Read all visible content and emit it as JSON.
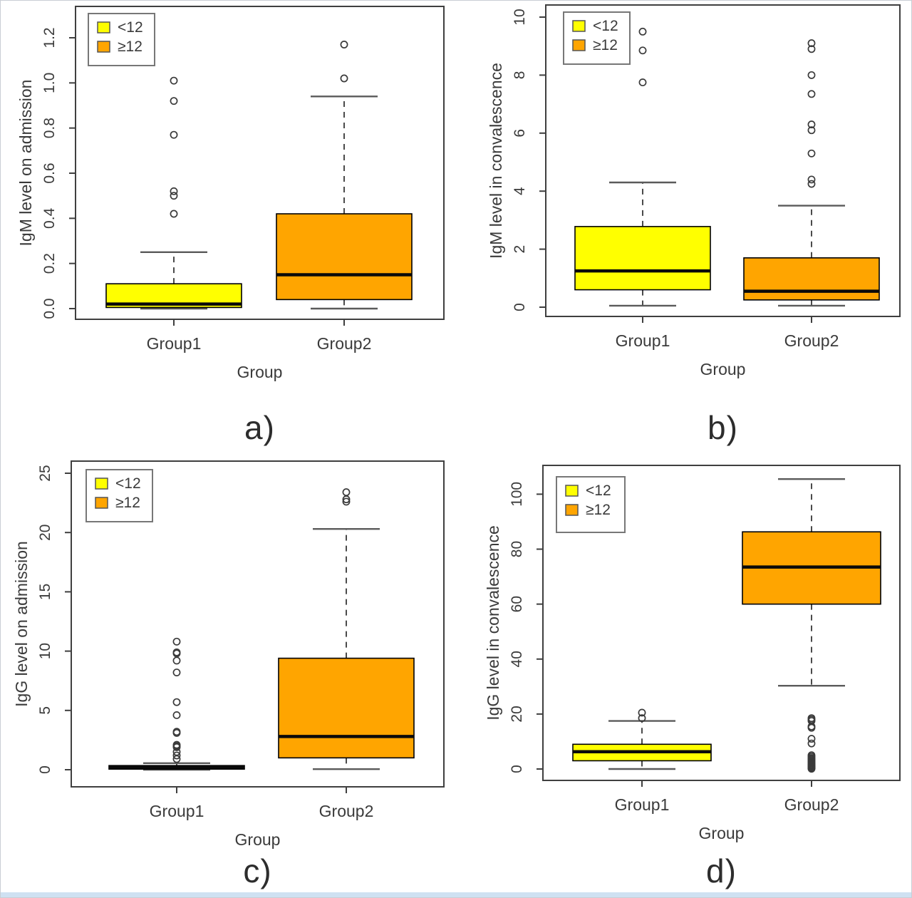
{
  "figure": {
    "colors": {
      "group1_fill": "#FFFF00",
      "group2_fill": "#FFA500",
      "box_stroke": "#000000",
      "median_stroke": "#0a0a0a",
      "whisker_line": "#2b2b2b",
      "whisker_cap": "#5a5a5a",
      "outlier_stroke": "#3a3a3a",
      "plot_border": "#3f3f3f",
      "axis_text": "#3a3a3a",
      "legend_border": "#777777",
      "bottom_strip": "#cfe1f2"
    },
    "legend": {
      "position": "top-left",
      "items": [
        {
          "label": "<12",
          "color_key": "group1_fill"
        },
        {
          "label": "≥12",
          "color_key": "group2_fill"
        }
      ]
    }
  },
  "chart_data": [
    {
      "id": "a",
      "type": "boxplot",
      "panel_label": "a)",
      "ylabel": "IgM level on admission",
      "xlabel": "Group",
      "categories": [
        "Group1",
        "Group2"
      ],
      "ytick_labels": [
        "0.0",
        "0.2",
        "0.4",
        "0.6",
        "0.8",
        "1.0",
        "1.2"
      ],
      "yticks": [
        0.0,
        0.2,
        0.4,
        0.6,
        0.8,
        1.0,
        1.2
      ],
      "ylim": [
        -0.05,
        1.39
      ],
      "grid": false,
      "legend": [
        "<12",
        "≥12"
      ],
      "series": [
        {
          "name": "Group1",
          "legend_group": "<12",
          "whisker_low": 0.0,
          "q1": 0.005,
          "median": 0.02,
          "q3": 0.11,
          "whisker_high": 0.25,
          "outliers": [
            0.42,
            0.5,
            0.52,
            0.77,
            0.92,
            1.01
          ]
        },
        {
          "name": "Group2",
          "legend_group": "≥12",
          "whisker_low": 0.0,
          "q1": 0.04,
          "median": 0.15,
          "q3": 0.42,
          "whisker_high": 0.94,
          "outliers": [
            1.02,
            1.17
          ]
        }
      ]
    },
    {
      "id": "b",
      "type": "boxplot",
      "panel_label": "b)",
      "ylabel": "IgM level in convalescence",
      "xlabel": "Group",
      "categories": [
        "Group1",
        "Group2"
      ],
      "ytick_labels": [
        "0",
        "2",
        "4",
        "6",
        "8",
        "10"
      ],
      "yticks": [
        0,
        2,
        4,
        6,
        8,
        10
      ],
      "ylim": [
        -0.4,
        10.4
      ],
      "grid": false,
      "legend": [
        "<12",
        "≥12"
      ],
      "series": [
        {
          "name": "Group1",
          "legend_group": "<12",
          "whisker_low": 0.05,
          "q1": 0.6,
          "median": 1.25,
          "q3": 2.78,
          "whisker_high": 4.3,
          "outliers": [
            7.75,
            8.85,
            9.5
          ]
        },
        {
          "name": "Group2",
          "legend_group": "≥12",
          "whisker_low": 0.05,
          "q1": 0.25,
          "median": 0.55,
          "q3": 1.7,
          "whisker_high": 3.5,
          "outliers": [
            4.25,
            4.4,
            5.3,
            6.1,
            6.3,
            7.35,
            8.0,
            8.9,
            9.1
          ]
        }
      ]
    },
    {
      "id": "c",
      "type": "boxplot",
      "panel_label": "c)",
      "ylabel": "IgG level on admission",
      "xlabel": "Group",
      "categories": [
        "Group1",
        "Group2"
      ],
      "ytick_labels": [
        "0",
        "5",
        "10",
        "15",
        "20",
        "25"
      ],
      "yticks": [
        0,
        5,
        10,
        15,
        20,
        25
      ],
      "ylim": [
        -1.0,
        26.0
      ],
      "grid": false,
      "legend": [
        "<12",
        "≥12"
      ],
      "series": [
        {
          "name": "Group1",
          "legend_group": "<12",
          "whisker_low": 0.0,
          "q1": 0.05,
          "median": 0.2,
          "q3": 0.35,
          "whisker_high": 0.55,
          "outliers": [
            0.9,
            1.2,
            1.5,
            1.9,
            2.0,
            2.1,
            3.1,
            3.2,
            4.6,
            5.7,
            8.2,
            9.2,
            9.8,
            9.9,
            10.8
          ]
        },
        {
          "name": "Group2",
          "legend_group": "≥12",
          "whisker_low": 0.05,
          "q1": 1.0,
          "median": 2.8,
          "q3": 9.4,
          "whisker_high": 20.3,
          "outliers": [
            22.6,
            22.8,
            23.4
          ]
        }
      ]
    },
    {
      "id": "d",
      "type": "boxplot",
      "panel_label": "d)",
      "ylabel": "IgG level in convalescence",
      "xlabel": "Group",
      "categories": [
        "Group1",
        "Group2"
      ],
      "ytick_labels": [
        "0",
        "20",
        "40",
        "60",
        "80",
        "100"
      ],
      "yticks": [
        0,
        20,
        40,
        60,
        80,
        100
      ],
      "ylim": [
        -4.0,
        110.0
      ],
      "grid": false,
      "legend": [
        "<12",
        "≥12"
      ],
      "series": [
        {
          "name": "Group1",
          "legend_group": "<12",
          "whisker_low": 0.0,
          "q1": 3.0,
          "median": 6.3,
          "q3": 9.0,
          "whisker_high": 17.5,
          "outliers": [
            18.5,
            20.5
          ]
        },
        {
          "name": "Group2",
          "legend_group": "≥12",
          "whisker_low": 30.3,
          "q1": 60.0,
          "median": 73.5,
          "q3": 86.3,
          "whisker_high": 105.5,
          "outliers": [
            0.1,
            0.3,
            0.5,
            0.8,
            1.0,
            1.3,
            1.6,
            2.0,
            2.4,
            2.8,
            3.2,
            3.6,
            4.0,
            4.5,
            5.0,
            9.3,
            11.0,
            15.0,
            15.5,
            17.5,
            18.0,
            18.5
          ]
        }
      ]
    }
  ]
}
